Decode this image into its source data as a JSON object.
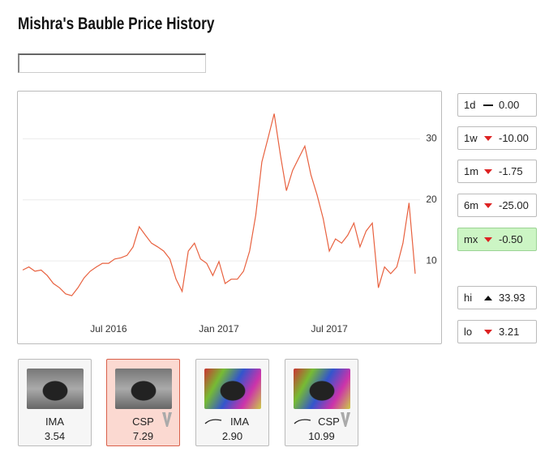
{
  "header": {
    "title": "Mishra's Bauble Price History"
  },
  "chart_data": {
    "type": "line",
    "color": "#e8613f",
    "grid": true,
    "categories": [
      null,
      null,
      null,
      null,
      null,
      null,
      null,
      null,
      null,
      null,
      null,
      null,
      null,
      null,
      "Jul 2016",
      null,
      null,
      null,
      null,
      null,
      null,
      null,
      null,
      null,
      null,
      null,
      null,
      null,
      null,
      null,
      null,
      null,
      "Jan 2017",
      null,
      null,
      null,
      null,
      null,
      null,
      null,
      null,
      null,
      null,
      null,
      null,
      null,
      null,
      null,
      null,
      null,
      "Jul 2017",
      null,
      null,
      null,
      null,
      null,
      null,
      null,
      null,
      null,
      null,
      null,
      null,
      null,
      null
    ],
    "values": [
      8.5,
      9,
      8.3,
      8.5,
      7.6,
      6.3,
      5.6,
      4.6,
      4.3,
      5.6,
      7.2,
      8.3,
      9,
      9.6,
      9.6,
      10.3,
      10.5,
      10.9,
      12.3,
      15.6,
      14.2,
      12.9,
      12.3,
      11.6,
      10.3,
      7,
      5,
      11.6,
      12.9,
      10.3,
      9.6,
      7.6,
      9.9,
      6.3,
      7,
      7,
      8.3,
      11.6,
      17.5,
      26.2,
      30.1,
      34.1,
      27.5,
      21.5,
      24.8,
      26.8,
      28.8,
      24.1,
      20.8,
      16.9,
      11.6,
      13.6,
      12.9,
      14.2,
      16.2,
      12.3,
      14.9,
      16.2,
      5.6,
      9,
      7.9,
      9,
      12.9,
      19.5,
      7.9
    ],
    "ylim": [
      0,
      38
    ],
    "yticks": [
      10,
      20,
      30
    ]
  },
  "stats": [
    {
      "label": "1d",
      "trend": "flat",
      "value": "0.00",
      "highlight": false
    },
    {
      "label": "1w",
      "trend": "down",
      "value": "-10.00",
      "highlight": false
    },
    {
      "label": "1m",
      "trend": "down",
      "value": "-1.75",
      "highlight": false
    },
    {
      "label": "6m",
      "trend": "down",
      "value": "-25.00",
      "highlight": false
    },
    {
      "label": "mx",
      "trend": "down",
      "value": "-0.50",
      "highlight": true
    },
    {
      "label": "hi",
      "trend": "up",
      "value": "33.93",
      "highlight": false
    },
    {
      "label": "lo",
      "trend": "down",
      "value": "3.21",
      "highlight": false
    }
  ],
  "cards": [
    {
      "name": "IMA",
      "price": "3.54",
      "foil": false,
      "set_icon": false,
      "selected": false
    },
    {
      "name": "CSP",
      "price": "7.29",
      "foil": false,
      "set_icon": true,
      "selected": true
    },
    {
      "name": "IMA",
      "price": "2.90",
      "foil": true,
      "set_icon": false,
      "selected": false
    },
    {
      "name": "CSP",
      "price": "10.99",
      "foil": true,
      "set_icon": true,
      "selected": false
    }
  ]
}
